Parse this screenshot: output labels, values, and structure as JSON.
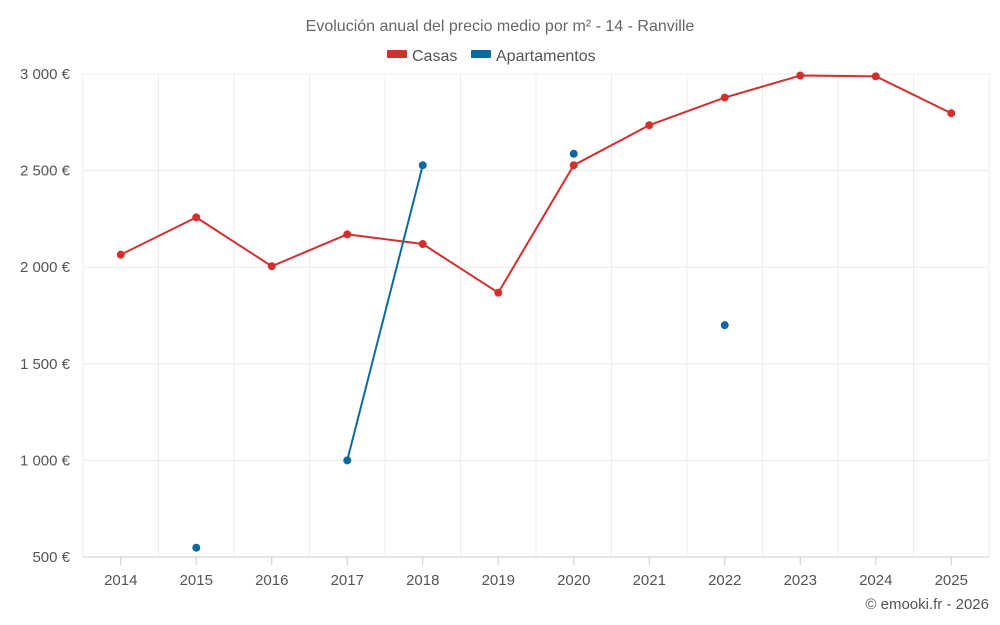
{
  "chart_data": {
    "type": "line",
    "title": "Evolución anual del precio medio por m² - 14 - Ranville",
    "categories": [
      "2014",
      "2015",
      "2016",
      "2017",
      "2018",
      "2019",
      "2020",
      "2021",
      "2022",
      "2023",
      "2024",
      "2025"
    ],
    "y_ticks": [
      500,
      1000,
      1500,
      2000,
      2500,
      3000
    ],
    "y_tick_labels": [
      "500 €",
      "1 000 €",
      "1 500 €",
      "2 000 €",
      "2 500 €",
      "3 000 €"
    ],
    "ylim": [
      500,
      3000
    ],
    "grid": true,
    "legend_position": "top-center",
    "series": [
      {
        "name": "Casas",
        "color": "#d32f2f",
        "values": [
          2065,
          2258,
          2005,
          2170,
          2120,
          1868,
          2528,
          2735,
          2878,
          2992,
          2988,
          2797
        ]
      },
      {
        "name": "Apartamentos",
        "color": "#0d6aa0",
        "values": [
          null,
          548,
          null,
          1000,
          2528,
          null,
          2587,
          null,
          1700,
          null,
          null,
          null
        ]
      }
    ]
  },
  "credit": "© emooki.fr - 2026"
}
